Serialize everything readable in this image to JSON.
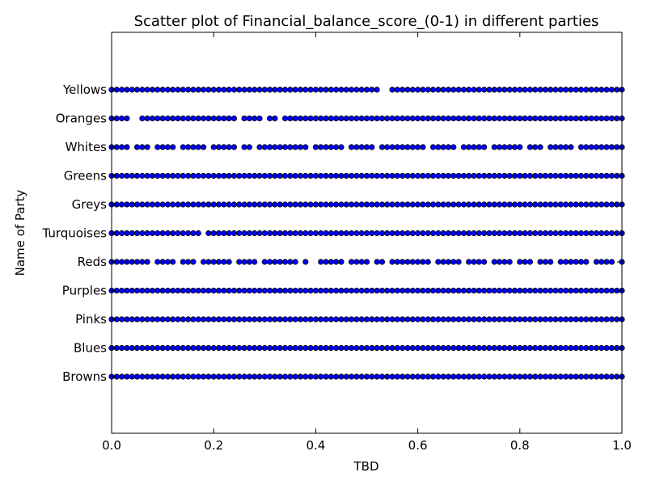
{
  "chart_data": {
    "type": "scatter",
    "title": "Scatter plot of Financial_balance_score_(0-1) in different parties",
    "xlabel": "TBD",
    "ylabel": "Name of Party",
    "xlim": [
      0,
      1
    ],
    "x_ticks": [
      "0.0",
      "0.2",
      "0.4",
      "0.6",
      "0.8",
      "1.0"
    ],
    "categories": [
      "Browns",
      "Blues",
      "Pinks",
      "Purples",
      "Reds",
      "Turquoises",
      "Greys",
      "Greens",
      "Whites",
      "Oranges",
      "Yellows"
    ],
    "series": [
      {
        "category": "Browns",
        "x": [
          0.0,
          0.01,
          0.02,
          0.03,
          0.04,
          0.05,
          0.06,
          0.07,
          0.08,
          0.09,
          0.1,
          0.11,
          0.12,
          0.13,
          0.14,
          0.15,
          0.16,
          0.17,
          0.18,
          0.19,
          0.2,
          0.21,
          0.22,
          0.23,
          0.24,
          0.25,
          0.26,
          0.27,
          0.28,
          0.29,
          0.3,
          0.31,
          0.32,
          0.33,
          0.34,
          0.35,
          0.36,
          0.37,
          0.38,
          0.39,
          0.4,
          0.41,
          0.42,
          0.43,
          0.44,
          0.45,
          0.46,
          0.47,
          0.48,
          0.49,
          0.5,
          0.51,
          0.52,
          0.53,
          0.54,
          0.55,
          0.56,
          0.57,
          0.58,
          0.59,
          0.6,
          0.61,
          0.62,
          0.63,
          0.64,
          0.65,
          0.66,
          0.67,
          0.68,
          0.69,
          0.7,
          0.71,
          0.72,
          0.73,
          0.74,
          0.75,
          0.76,
          0.77,
          0.78,
          0.79,
          0.8,
          0.81,
          0.82,
          0.83,
          0.84,
          0.85,
          0.86,
          0.87,
          0.88,
          0.89,
          0.9,
          0.91,
          0.92,
          0.93,
          0.94,
          0.95,
          0.96,
          0.97,
          0.98,
          0.99,
          1.0
        ]
      },
      {
        "category": "Blues",
        "x": [
          0.0,
          0.01,
          0.02,
          0.03,
          0.04,
          0.05,
          0.06,
          0.07,
          0.08,
          0.09,
          0.1,
          0.11,
          0.12,
          0.13,
          0.14,
          0.15,
          0.16,
          0.17,
          0.18,
          0.19,
          0.2,
          0.21,
          0.22,
          0.23,
          0.24,
          0.25,
          0.26,
          0.27,
          0.28,
          0.29,
          0.3,
          0.31,
          0.32,
          0.33,
          0.34,
          0.35,
          0.36,
          0.37,
          0.38,
          0.39,
          0.4,
          0.41,
          0.42,
          0.43,
          0.44,
          0.45,
          0.46,
          0.47,
          0.48,
          0.49,
          0.5,
          0.51,
          0.52,
          0.53,
          0.54,
          0.55,
          0.56,
          0.57,
          0.58,
          0.59,
          0.6,
          0.61,
          0.62,
          0.63,
          0.64,
          0.65,
          0.66,
          0.67,
          0.68,
          0.69,
          0.7,
          0.71,
          0.72,
          0.73,
          0.74,
          0.75,
          0.76,
          0.77,
          0.78,
          0.79,
          0.8,
          0.81,
          0.82,
          0.83,
          0.84,
          0.85,
          0.86,
          0.87,
          0.88,
          0.89,
          0.9,
          0.91,
          0.92,
          0.93,
          0.94,
          0.95,
          0.96,
          0.97,
          0.98,
          0.99,
          1.0
        ]
      },
      {
        "category": "Pinks",
        "x": [
          0.0,
          0.01,
          0.02,
          0.03,
          0.04,
          0.05,
          0.06,
          0.07,
          0.08,
          0.09,
          0.1,
          0.11,
          0.12,
          0.13,
          0.14,
          0.15,
          0.16,
          0.17,
          0.18,
          0.19,
          0.2,
          0.21,
          0.22,
          0.23,
          0.24,
          0.25,
          0.26,
          0.27,
          0.28,
          0.29,
          0.3,
          0.31,
          0.32,
          0.33,
          0.34,
          0.35,
          0.36,
          0.37,
          0.38,
          0.39,
          0.4,
          0.41,
          0.42,
          0.43,
          0.44,
          0.45,
          0.46,
          0.47,
          0.48,
          0.49,
          0.5,
          0.51,
          0.52,
          0.53,
          0.54,
          0.55,
          0.56,
          0.57,
          0.58,
          0.59,
          0.6,
          0.61,
          0.62,
          0.63,
          0.64,
          0.65,
          0.66,
          0.67,
          0.68,
          0.69,
          0.7,
          0.71,
          0.72,
          0.73,
          0.74,
          0.75,
          0.76,
          0.77,
          0.78,
          0.79,
          0.8,
          0.81,
          0.82,
          0.83,
          0.84,
          0.85,
          0.86,
          0.87,
          0.88,
          0.89,
          0.9,
          0.91,
          0.92,
          0.93,
          0.94,
          0.95,
          0.96,
          0.97,
          0.98,
          0.99,
          1.0
        ]
      },
      {
        "category": "Purples",
        "x": [
          0.0,
          0.01,
          0.02,
          0.03,
          0.04,
          0.05,
          0.06,
          0.07,
          0.08,
          0.09,
          0.1,
          0.11,
          0.12,
          0.13,
          0.14,
          0.15,
          0.16,
          0.17,
          0.18,
          0.19,
          0.2,
          0.21,
          0.22,
          0.23,
          0.24,
          0.25,
          0.26,
          0.27,
          0.28,
          0.29,
          0.3,
          0.31,
          0.32,
          0.33,
          0.34,
          0.35,
          0.36,
          0.37,
          0.38,
          0.39,
          0.4,
          0.41,
          0.42,
          0.43,
          0.44,
          0.45,
          0.46,
          0.47,
          0.48,
          0.49,
          0.5,
          0.51,
          0.52,
          0.53,
          0.54,
          0.55,
          0.56,
          0.57,
          0.58,
          0.59,
          0.6,
          0.61,
          0.62,
          0.63,
          0.64,
          0.65,
          0.66,
          0.67,
          0.68,
          0.69,
          0.7,
          0.71,
          0.72,
          0.73,
          0.74,
          0.75,
          0.76,
          0.77,
          0.78,
          0.79,
          0.8,
          0.81,
          0.82,
          0.83,
          0.84,
          0.85,
          0.86,
          0.87,
          0.88,
          0.89,
          0.9,
          0.91,
          0.92,
          0.93,
          0.94,
          0.95,
          0.96,
          0.97,
          0.98,
          0.99,
          1.0
        ]
      },
      {
        "category": "Reds",
        "x": [
          0.0,
          0.01,
          0.02,
          0.03,
          0.04,
          0.05,
          0.06,
          0.07,
          0.09,
          0.1,
          0.11,
          0.12,
          0.14,
          0.15,
          0.16,
          0.18,
          0.19,
          0.2,
          0.21,
          0.22,
          0.23,
          0.25,
          0.26,
          0.27,
          0.28,
          0.3,
          0.31,
          0.32,
          0.33,
          0.34,
          0.35,
          0.36,
          0.38,
          0.41,
          0.42,
          0.43,
          0.44,
          0.45,
          0.47,
          0.48,
          0.49,
          0.5,
          0.52,
          0.53,
          0.55,
          0.56,
          0.57,
          0.58,
          0.59,
          0.6,
          0.61,
          0.62,
          0.64,
          0.65,
          0.66,
          0.67,
          0.68,
          0.7,
          0.71,
          0.72,
          0.73,
          0.75,
          0.76,
          0.77,
          0.78,
          0.8,
          0.81,
          0.82,
          0.84,
          0.85,
          0.86,
          0.88,
          0.89,
          0.9,
          0.91,
          0.92,
          0.93,
          0.95,
          0.96,
          0.97,
          0.98,
          1.0
        ]
      },
      {
        "category": "Turquoises",
        "x": [
          0.0,
          0.01,
          0.02,
          0.03,
          0.04,
          0.05,
          0.06,
          0.07,
          0.08,
          0.09,
          0.1,
          0.11,
          0.12,
          0.13,
          0.14,
          0.15,
          0.16,
          0.17,
          0.19,
          0.2,
          0.21,
          0.22,
          0.23,
          0.24,
          0.25,
          0.26,
          0.27,
          0.28,
          0.29,
          0.3,
          0.31,
          0.32,
          0.33,
          0.34,
          0.35,
          0.36,
          0.37,
          0.38,
          0.39,
          0.4,
          0.41,
          0.42,
          0.43,
          0.44,
          0.45,
          0.46,
          0.47,
          0.48,
          0.49,
          0.5,
          0.51,
          0.52,
          0.53,
          0.54,
          0.55,
          0.56,
          0.57,
          0.58,
          0.59,
          0.6,
          0.61,
          0.62,
          0.63,
          0.64,
          0.65,
          0.66,
          0.67,
          0.68,
          0.69,
          0.7,
          0.71,
          0.72,
          0.73,
          0.74,
          0.75,
          0.76,
          0.77,
          0.78,
          0.79,
          0.8,
          0.81,
          0.82,
          0.83,
          0.84,
          0.85,
          0.86,
          0.87,
          0.88,
          0.89,
          0.9,
          0.91,
          0.92,
          0.93,
          0.94,
          0.95,
          0.96,
          0.97,
          0.98,
          0.99,
          1.0
        ]
      },
      {
        "category": "Greys",
        "x": [
          0.0,
          0.01,
          0.02,
          0.03,
          0.04,
          0.05,
          0.06,
          0.07,
          0.08,
          0.09,
          0.1,
          0.11,
          0.12,
          0.13,
          0.14,
          0.15,
          0.16,
          0.17,
          0.18,
          0.19,
          0.2,
          0.21,
          0.22,
          0.23,
          0.24,
          0.25,
          0.26,
          0.27,
          0.28,
          0.29,
          0.3,
          0.31,
          0.32,
          0.33,
          0.34,
          0.35,
          0.36,
          0.37,
          0.38,
          0.39,
          0.4,
          0.41,
          0.42,
          0.43,
          0.44,
          0.45,
          0.46,
          0.47,
          0.48,
          0.49,
          0.5,
          0.51,
          0.52,
          0.53,
          0.54,
          0.55,
          0.56,
          0.57,
          0.58,
          0.59,
          0.6,
          0.61,
          0.62,
          0.63,
          0.64,
          0.65,
          0.66,
          0.67,
          0.68,
          0.69,
          0.7,
          0.71,
          0.72,
          0.73,
          0.74,
          0.75,
          0.76,
          0.77,
          0.78,
          0.79,
          0.8,
          0.81,
          0.82,
          0.83,
          0.84,
          0.85,
          0.86,
          0.87,
          0.88,
          0.89,
          0.9,
          0.91,
          0.92,
          0.93,
          0.94,
          0.95,
          0.96,
          0.97,
          0.98,
          0.99,
          1.0
        ]
      },
      {
        "category": "Greens",
        "x": [
          0.0,
          0.01,
          0.02,
          0.03,
          0.04,
          0.05,
          0.06,
          0.07,
          0.08,
          0.09,
          0.1,
          0.11,
          0.12,
          0.13,
          0.14,
          0.15,
          0.16,
          0.17,
          0.18,
          0.19,
          0.2,
          0.21,
          0.22,
          0.23,
          0.24,
          0.25,
          0.26,
          0.27,
          0.28,
          0.29,
          0.3,
          0.31,
          0.32,
          0.33,
          0.34,
          0.35,
          0.36,
          0.37,
          0.38,
          0.39,
          0.4,
          0.41,
          0.42,
          0.43,
          0.44,
          0.45,
          0.46,
          0.47,
          0.48,
          0.49,
          0.5,
          0.51,
          0.52,
          0.53,
          0.54,
          0.55,
          0.56,
          0.57,
          0.58,
          0.59,
          0.6,
          0.61,
          0.62,
          0.63,
          0.64,
          0.65,
          0.66,
          0.67,
          0.68,
          0.69,
          0.7,
          0.71,
          0.72,
          0.73,
          0.74,
          0.75,
          0.76,
          0.77,
          0.78,
          0.79,
          0.8,
          0.81,
          0.82,
          0.83,
          0.84,
          0.85,
          0.86,
          0.87,
          0.88,
          0.89,
          0.9,
          0.91,
          0.92,
          0.93,
          0.94,
          0.95,
          0.96,
          0.97,
          0.98,
          0.99,
          1.0
        ]
      },
      {
        "category": "Whites",
        "x": [
          0.0,
          0.01,
          0.02,
          0.03,
          0.05,
          0.06,
          0.07,
          0.09,
          0.1,
          0.11,
          0.12,
          0.14,
          0.15,
          0.16,
          0.17,
          0.18,
          0.2,
          0.21,
          0.22,
          0.23,
          0.24,
          0.26,
          0.27,
          0.29,
          0.3,
          0.31,
          0.32,
          0.33,
          0.34,
          0.35,
          0.36,
          0.37,
          0.38,
          0.4,
          0.41,
          0.42,
          0.43,
          0.44,
          0.45,
          0.47,
          0.48,
          0.49,
          0.5,
          0.51,
          0.53,
          0.54,
          0.55,
          0.56,
          0.57,
          0.58,
          0.59,
          0.6,
          0.61,
          0.63,
          0.64,
          0.65,
          0.66,
          0.67,
          0.69,
          0.7,
          0.71,
          0.72,
          0.73,
          0.75,
          0.76,
          0.77,
          0.78,
          0.79,
          0.8,
          0.82,
          0.83,
          0.84,
          0.86,
          0.87,
          0.88,
          0.89,
          0.9,
          0.92,
          0.93,
          0.94,
          0.95,
          0.96,
          0.97,
          0.98,
          0.99,
          1.0
        ]
      },
      {
        "category": "Oranges",
        "x": [
          0.0,
          0.01,
          0.02,
          0.03,
          0.06,
          0.07,
          0.08,
          0.09,
          0.1,
          0.11,
          0.12,
          0.13,
          0.14,
          0.15,
          0.16,
          0.17,
          0.18,
          0.19,
          0.2,
          0.21,
          0.22,
          0.23,
          0.24,
          0.26,
          0.27,
          0.28,
          0.29,
          0.31,
          0.32,
          0.34,
          0.35,
          0.36,
          0.37,
          0.38,
          0.39,
          0.4,
          0.41,
          0.42,
          0.43,
          0.44,
          0.45,
          0.46,
          0.47,
          0.48,
          0.49,
          0.5,
          0.51,
          0.52,
          0.53,
          0.54,
          0.55,
          0.56,
          0.57,
          0.58,
          0.59,
          0.6,
          0.61,
          0.62,
          0.63,
          0.64,
          0.65,
          0.66,
          0.67,
          0.68,
          0.69,
          0.7,
          0.71,
          0.72,
          0.73,
          0.74,
          0.75,
          0.76,
          0.77,
          0.78,
          0.79,
          0.8,
          0.81,
          0.82,
          0.83,
          0.84,
          0.85,
          0.86,
          0.87,
          0.88,
          0.89,
          0.9,
          0.91,
          0.92,
          0.93,
          0.94,
          0.95,
          0.96,
          0.97,
          0.98,
          0.99,
          1.0
        ]
      },
      {
        "category": "Yellows",
        "x": [
          0.0,
          0.01,
          0.02,
          0.03,
          0.04,
          0.05,
          0.06,
          0.07,
          0.08,
          0.09,
          0.1,
          0.11,
          0.12,
          0.13,
          0.14,
          0.15,
          0.16,
          0.17,
          0.18,
          0.19,
          0.2,
          0.21,
          0.22,
          0.23,
          0.24,
          0.25,
          0.26,
          0.27,
          0.28,
          0.29,
          0.3,
          0.31,
          0.32,
          0.33,
          0.34,
          0.35,
          0.36,
          0.37,
          0.38,
          0.39,
          0.4,
          0.41,
          0.42,
          0.43,
          0.44,
          0.45,
          0.46,
          0.47,
          0.48,
          0.49,
          0.5,
          0.51,
          0.52,
          0.55,
          0.56,
          0.57,
          0.58,
          0.59,
          0.6,
          0.61,
          0.62,
          0.63,
          0.64,
          0.65,
          0.66,
          0.67,
          0.68,
          0.69,
          0.7,
          0.71,
          0.72,
          0.73,
          0.74,
          0.75,
          0.76,
          0.77,
          0.78,
          0.79,
          0.8,
          0.81,
          0.82,
          0.83,
          0.84,
          0.85,
          0.86,
          0.87,
          0.88,
          0.89,
          0.9,
          0.91,
          0.92,
          0.93,
          0.94,
          0.95,
          0.96,
          0.97,
          0.98,
          0.99,
          1.0
        ]
      }
    ],
    "marker_color": "#0000ff",
    "marker_edge_color": "#000000",
    "grid": false,
    "legend": "none"
  }
}
